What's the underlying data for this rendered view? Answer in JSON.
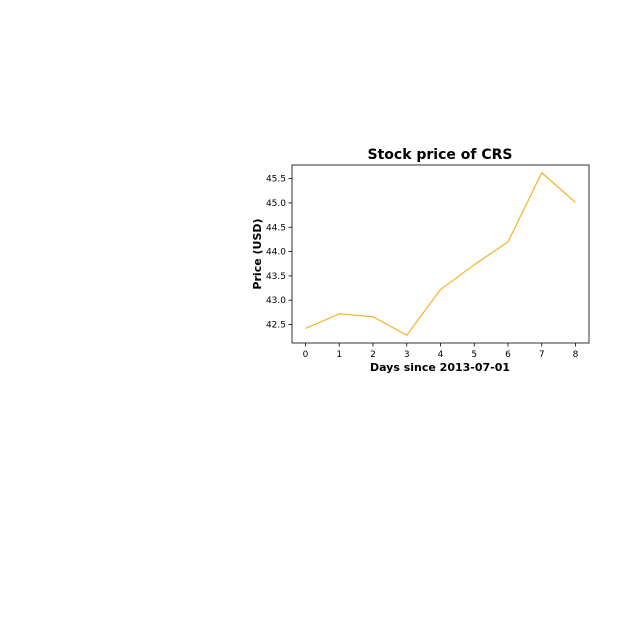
{
  "chart_data": {
    "type": "line",
    "title": "Stock price of CRS",
    "xlabel": "Days since 2013-07-01",
    "ylabel": "Price (USD)",
    "x": [
      0,
      1,
      2,
      3,
      4,
      5,
      6,
      7,
      8
    ],
    "series": [
      {
        "values": [
          42.42,
          42.72,
          42.66,
          42.28,
          43.22,
          43.73,
          44.2,
          45.62,
          45.01
        ],
        "color": "#f5b325"
      }
    ],
    "x_ticks": [
      "0",
      "1",
      "2",
      "3",
      "4",
      "5",
      "6",
      "7",
      "8"
    ],
    "y_ticks": [
      "42.5",
      "43.0",
      "43.5",
      "44.0",
      "44.5",
      "45.0",
      "45.5"
    ],
    "xlim": [
      -0.4,
      8.4
    ],
    "ylim": [
      42.12,
      45.78
    ],
    "grid": false,
    "legend": "none"
  }
}
